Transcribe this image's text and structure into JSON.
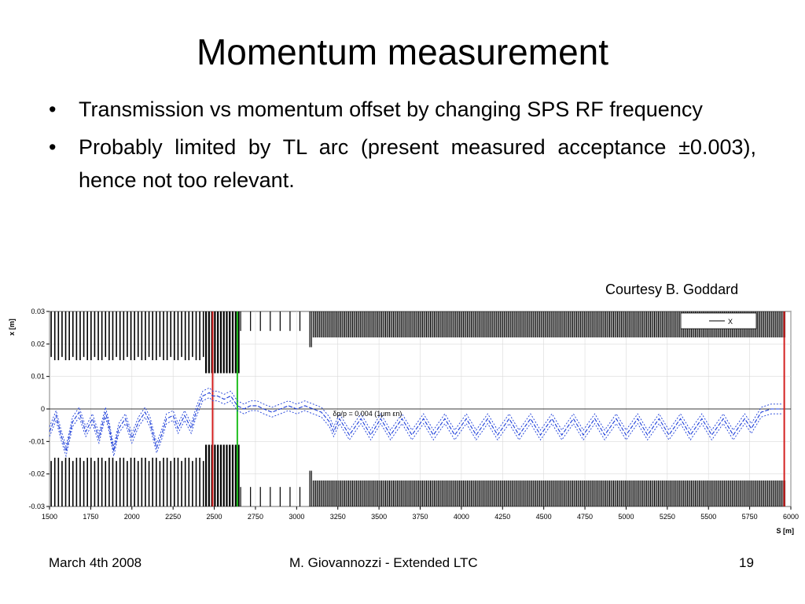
{
  "slide": {
    "title": "Momentum measurement",
    "bullets": [
      "Transmission vs momentum offset by changing SPS RF frequency",
      "Probably limited by TL arc (present measured acceptance ±0.003), hence not too relevant."
    ],
    "bullet_symbol": "•",
    "courtesy": "Courtesy B. Goddard"
  },
  "footer": {
    "date": "March 4th 2008",
    "author": "M. Giovannozzi - Extended LTC",
    "page": "19"
  },
  "chart_data": {
    "type": "line",
    "xlabel": "S [m]",
    "ylabel": "x [m]",
    "xlim": [
      1500,
      6000
    ],
    "ylim": [
      -0.03,
      0.03
    ],
    "x_ticks": [
      1500,
      1750,
      2000,
      2250,
      2500,
      2750,
      3000,
      3250,
      3500,
      3750,
      4000,
      4250,
      4500,
      4750,
      5000,
      5250,
      5500,
      5750,
      6000
    ],
    "y_ticks": [
      0.03,
      0.02,
      0.01,
      0,
      -0.01,
      -0.02,
      -0.03
    ],
    "y_tick_labels": [
      "0.03",
      "0.02",
      "0.01",
      "0",
      "-0.01",
      "-0.02",
      "-0.03"
    ],
    "grid": true,
    "legend": {
      "position": "top-right",
      "entries": [
        "X"
      ]
    },
    "annotation": {
      "text": "δp/p = 0.004 (1μm εn)",
      "x": 3220,
      "y": 0
    },
    "markers": [
      {
        "s": 2490,
        "color": "#d42020"
      },
      {
        "s": 2640,
        "color": "#20c020"
      },
      {
        "s": 5960,
        "color": "#d42020"
      }
    ],
    "series": [
      {
        "name": "X",
        "color": "#1a3cd8",
        "x": [
          1500,
          1540,
          1570,
          1600,
          1640,
          1680,
          1720,
          1760,
          1800,
          1840,
          1860,
          1890,
          1920,
          1960,
          2000,
          2040,
          2080,
          2110,
          2150,
          2180,
          2210,
          2250,
          2280,
          2320,
          2360,
          2390,
          2430,
          2470,
          2490,
          2520,
          2560,
          2600,
          2640,
          2680,
          2720,
          2760,
          2800,
          2850,
          2900,
          2950,
          3000,
          3050,
          3100,
          3150,
          3200,
          3225,
          3260,
          3320,
          3390,
          3450,
          3510,
          3570,
          3640,
          3700,
          3770,
          3830,
          3900,
          3960,
          4030,
          4090,
          4160,
          4220,
          4290,
          4350,
          4420,
          4480,
          4550,
          4610,
          4680,
          4740,
          4810,
          4870,
          4940,
          5000,
          5070,
          5130,
          5200,
          5260,
          5330,
          5390,
          5460,
          5520,
          5590,
          5650,
          5720,
          5760,
          5820,
          5880,
          5950
        ],
        "y": [
          -0.007,
          -0.002,
          -0.008,
          -0.013,
          -0.004,
          -0.001,
          -0.007,
          -0.003,
          -0.009,
          -0.001,
          -0.005,
          -0.013,
          -0.006,
          -0.003,
          -0.009,
          -0.004,
          -0.001,
          -0.004,
          -0.012,
          -0.008,
          -0.003,
          -0.002,
          -0.006,
          -0.002,
          -0.006,
          -0.001,
          0.004,
          0.005,
          0.004,
          0.004,
          0.003,
          0.004,
          0.001,
          0.0,
          0.001,
          0.001,
          0.0,
          -0.001,
          0.0,
          0.001,
          0.0,
          0.001,
          0.0,
          -0.001,
          -0.004,
          -0.007,
          -0.003,
          -0.008,
          -0.003,
          -0.008,
          -0.003,
          -0.008,
          -0.003,
          -0.008,
          -0.003,
          -0.008,
          -0.003,
          -0.008,
          -0.003,
          -0.008,
          -0.003,
          -0.008,
          -0.003,
          -0.008,
          -0.003,
          -0.008,
          -0.003,
          -0.008,
          -0.003,
          -0.008,
          -0.003,
          -0.008,
          -0.003,
          -0.008,
          -0.003,
          -0.008,
          -0.003,
          -0.008,
          -0.003,
          -0.008,
          -0.003,
          -0.008,
          -0.003,
          -0.008,
          -0.003,
          -0.006,
          -0.001,
          0.0,
          0.0
        ]
      }
    ]
  }
}
